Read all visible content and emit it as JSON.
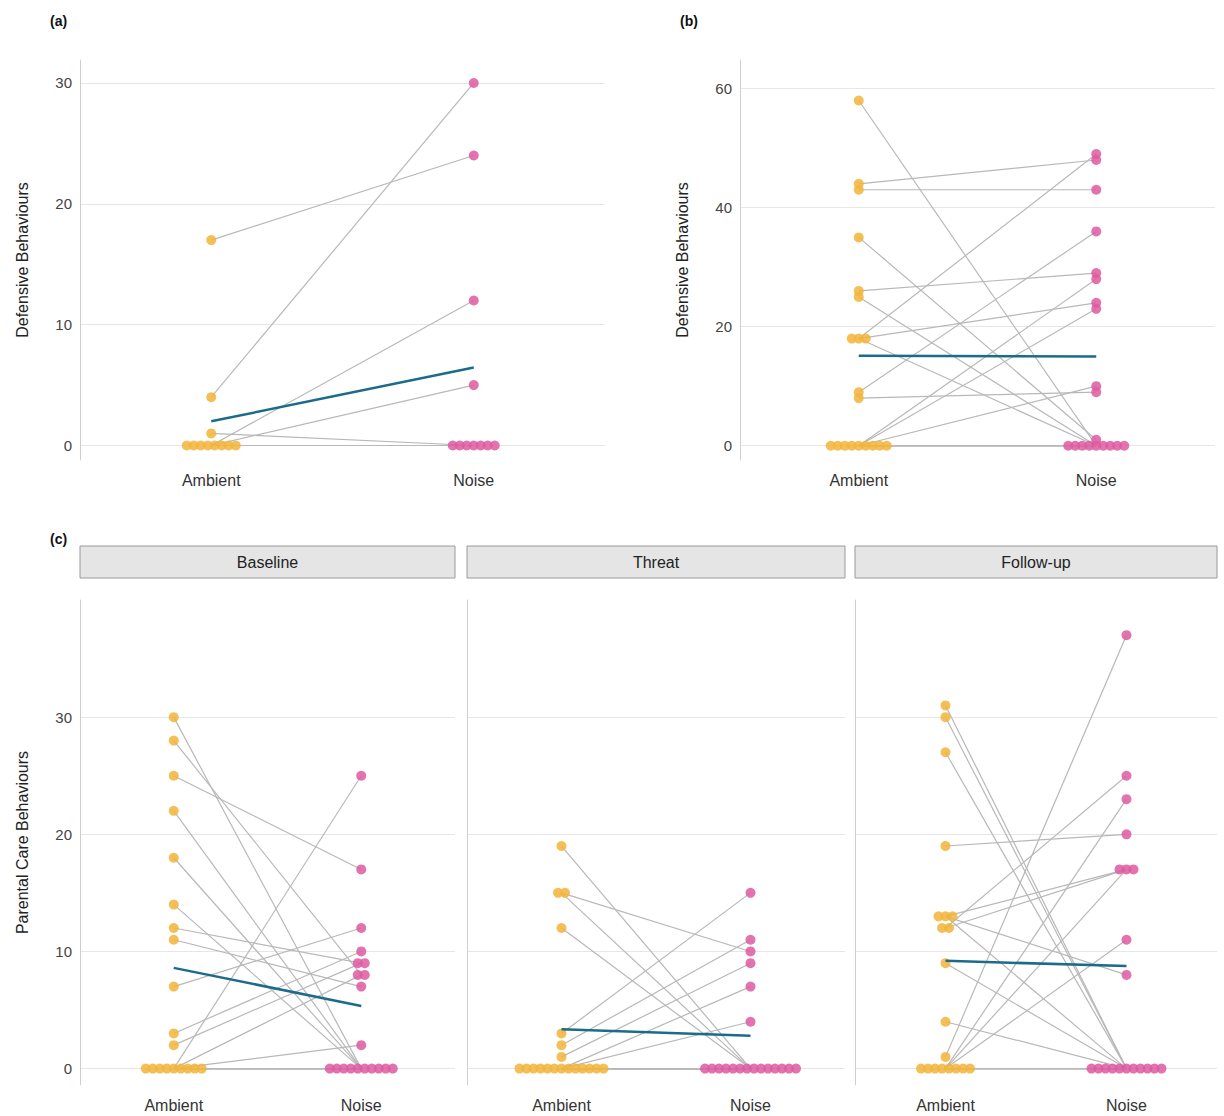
{
  "chart_data": [
    {
      "panel": "(a)",
      "type": "paired_dot",
      "ylabel": "Defensive Behaviours",
      "categories": [
        "Ambient",
        "Noise"
      ],
      "colors": [
        "#f2b43a",
        "#de5aa0"
      ],
      "individuals": [
        [
          17,
          24
        ],
        [
          4,
          30
        ],
        [
          0,
          12
        ],
        [
          0,
          5
        ],
        [
          1,
          0
        ],
        [
          0,
          0
        ],
        [
          0,
          0
        ],
        [
          0,
          0
        ],
        [
          0,
          0
        ],
        [
          0,
          0
        ],
        [
          0,
          0
        ]
      ],
      "mean": [
        2.0,
        6.45
      ],
      "ylim": [
        -1.2,
        31.9
      ],
      "yticks": [
        0,
        10,
        20,
        30
      ],
      "grid": true
    },
    {
      "panel": "(b)",
      "type": "paired_dot",
      "ylabel": "Defensive Behaviours",
      "categories": [
        "Ambient",
        "Noise"
      ],
      "colors": [
        "#f2b43a",
        "#de5aa0"
      ],
      "individuals": [
        [
          58,
          0
        ],
        [
          44,
          48
        ],
        [
          43,
          43
        ],
        [
          35,
          1
        ],
        [
          26,
          29
        ],
        [
          25,
          0
        ],
        [
          18,
          49
        ],
        [
          18,
          24
        ],
        [
          18,
          0
        ],
        [
          9,
          36
        ],
        [
          8,
          9
        ],
        [
          0,
          28
        ],
        [
          0,
          10
        ],
        [
          0,
          23
        ],
        [
          0,
          0
        ],
        [
          0,
          0
        ],
        [
          0,
          0
        ],
        [
          0,
          0
        ],
        [
          0,
          0
        ],
        [
          0,
          0
        ]
      ],
      "mean": [
        15.1,
        15.0
      ],
      "ylim": [
        -2.4,
        64.8
      ],
      "yticks": [
        0,
        20,
        40,
        60
      ],
      "grid": true
    },
    {
      "panel": "(c)",
      "type": "paired_dot",
      "ylabel": "Parental Care Behaviours",
      "categories": [
        "Ambient",
        "Noise"
      ],
      "colors": [
        "#f2b43a",
        "#de5aa0"
      ],
      "ylim": [
        -1.4,
        40
      ],
      "yticks": [
        0,
        10,
        20,
        30
      ],
      "grid": true,
      "tick_labels": "y",
      "facets": [
        {
          "title": "Baseline",
          "individuals": [
            [
              30,
              0
            ],
            [
              28,
              8
            ],
            [
              25,
              17
            ],
            [
              22,
              0
            ],
            [
              18,
              0
            ],
            [
              14,
              0
            ],
            [
              12,
              9
            ],
            [
              11,
              7
            ],
            [
              7,
              12
            ],
            [
              3,
              10
            ],
            [
              2,
              9
            ],
            [
              0,
              25
            ],
            [
              0,
              8
            ],
            [
              0,
              2
            ],
            [
              0,
              0
            ],
            [
              0,
              0
            ],
            [
              0,
              0
            ],
            [
              0,
              0
            ],
            [
              0,
              0
            ],
            [
              0,
              0
            ]
          ],
          "mean": [
            8.6,
            5.35
          ]
        },
        {
          "title": "Threat",
          "individuals": [
            [
              19,
              0
            ],
            [
              15,
              10
            ],
            [
              15,
              0
            ],
            [
              12,
              0
            ],
            [
              3,
              15
            ],
            [
              2,
              11
            ],
            [
              1,
              9
            ],
            [
              0,
              7
            ],
            [
              0,
              4
            ],
            [
              0,
              0
            ],
            [
              0,
              0
            ],
            [
              0,
              0
            ],
            [
              0,
              0
            ],
            [
              0,
              0
            ],
            [
              0,
              0
            ],
            [
              0,
              0
            ],
            [
              0,
              0
            ],
            [
              0,
              0
            ],
            [
              0,
              0
            ],
            [
              0,
              0
            ]
          ],
          "mean": [
            3.35,
            2.8
          ]
        },
        {
          "title": "Follow-up",
          "individuals": [
            [
              31,
              0
            ],
            [
              30,
              0
            ],
            [
              27,
              0
            ],
            [
              19,
              20
            ],
            [
              13,
              17
            ],
            [
              13,
              8
            ],
            [
              13,
              0
            ],
            [
              12,
              25
            ],
            [
              12,
              17
            ],
            [
              9,
              0
            ],
            [
              4,
              0
            ],
            [
              1,
              37
            ],
            [
              0,
              23
            ],
            [
              0,
              17
            ],
            [
              0,
              11
            ],
            [
              0,
              0
            ],
            [
              0,
              0
            ],
            [
              0,
              0
            ],
            [
              0,
              0
            ],
            [
              0,
              0
            ]
          ],
          "mean": [
            9.2,
            8.75
          ]
        }
      ]
    }
  ]
}
